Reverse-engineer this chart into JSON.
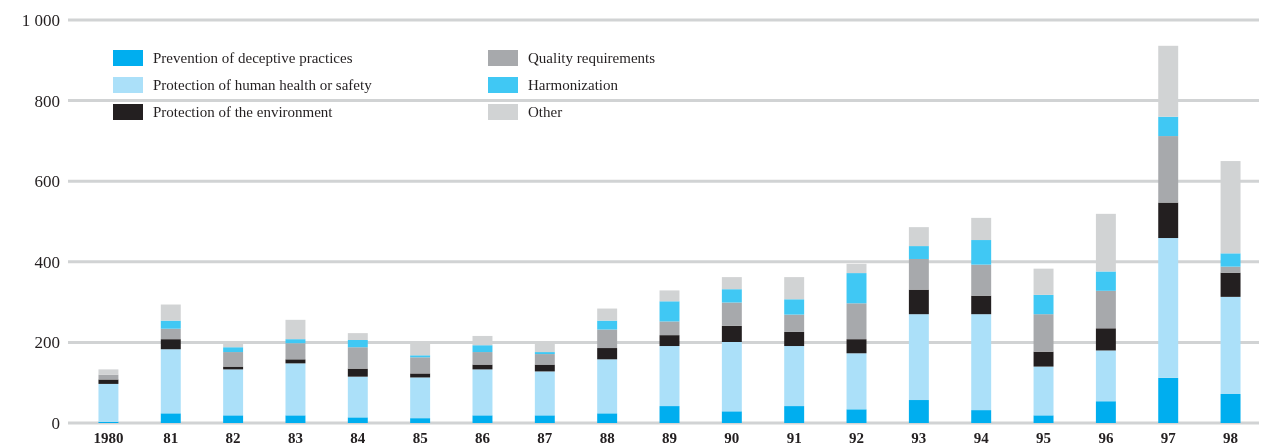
{
  "chart_data": {
    "type": "bar",
    "stacked": true,
    "categories": [
      "1980",
      "81",
      "82",
      "83",
      "84",
      "85",
      "86",
      "87",
      "88",
      "89",
      "90",
      "91",
      "92",
      "93",
      "94",
      "95",
      "96",
      "97",
      "98"
    ],
    "ylim": [
      0,
      1000
    ],
    "yticks": [
      0,
      200,
      400,
      600,
      800,
      {
        "value": 1000,
        "label": "1 000"
      }
    ],
    "grid": "y",
    "legend": "top left",
    "series": [
      {
        "name": "Prevention of deceptive practices",
        "color": "#00aeef",
        "values": [
          3,
          24,
          19,
          19,
          14,
          12,
          19,
          19,
          24,
          42,
          29,
          42,
          34,
          57,
          32,
          19,
          54,
          112,
          72
        ]
      },
      {
        "name": "Protection of human health or safety",
        "color": "#abe0f9",
        "values": [
          94,
          159,
          114,
          129,
          101,
          101,
          114,
          109,
          134,
          149,
          172,
          149,
          139,
          213,
          238,
          121,
          126,
          347,
          241
        ]
      },
      {
        "name": "Protection of the environment",
        "color": "#231f20",
        "values": [
          11,
          25,
          7,
          10,
          20,
          10,
          12,
          17,
          28,
          27,
          40,
          35,
          35,
          61,
          46,
          37,
          55,
          88,
          60
        ]
      },
      {
        "name": "Quality requirements",
        "color": "#a7a9ac",
        "values": [
          12,
          26,
          36,
          40,
          53,
          40,
          31,
          26,
          46,
          34,
          58,
          43,
          89,
          76,
          77,
          93,
          93,
          165,
          15
        ]
      },
      {
        "name": "Harmonization",
        "color": "#40c8f4",
        "values": [
          0,
          20,
          12,
          10,
          18,
          5,
          17,
          5,
          22,
          50,
          33,
          38,
          75,
          32,
          61,
          48,
          48,
          48,
          33
        ]
      },
      {
        "name": "Other",
        "color": "#d1d3d4",
        "values": [
          13,
          40,
          9,
          48,
          17,
          30,
          23,
          22,
          30,
          27,
          30,
          55,
          23,
          47,
          55,
          65,
          143,
          176,
          229
        ]
      }
    ]
  }
}
